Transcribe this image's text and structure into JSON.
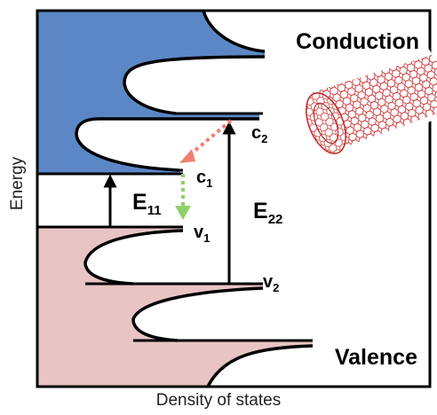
{
  "axes": {
    "y_label": "Energy",
    "x_label": "Density of states"
  },
  "bands": {
    "conduction_label": "Conduction",
    "valence_label": "Valence"
  },
  "levels": {
    "c2": {
      "base": "c",
      "sub": "2"
    },
    "c1": {
      "base": "c",
      "sub": "1"
    },
    "v1": {
      "base": "v",
      "sub": "1"
    },
    "v2": {
      "base": "v",
      "sub": "2"
    }
  },
  "transitions": {
    "e11": {
      "base": "E",
      "sub": "11"
    },
    "e22": {
      "base": "E",
      "sub": "22"
    }
  },
  "colors": {
    "conduction_fill": "#5b87c6",
    "valence_fill": "#e8c4c4",
    "frame": "#000000",
    "relax_arrow_red": "#f08070",
    "relax_arrow_green": "#8fd16a",
    "nanotube": "#d04040"
  },
  "icons": {
    "nanotube": "carbon-nanotube-illustration"
  }
}
